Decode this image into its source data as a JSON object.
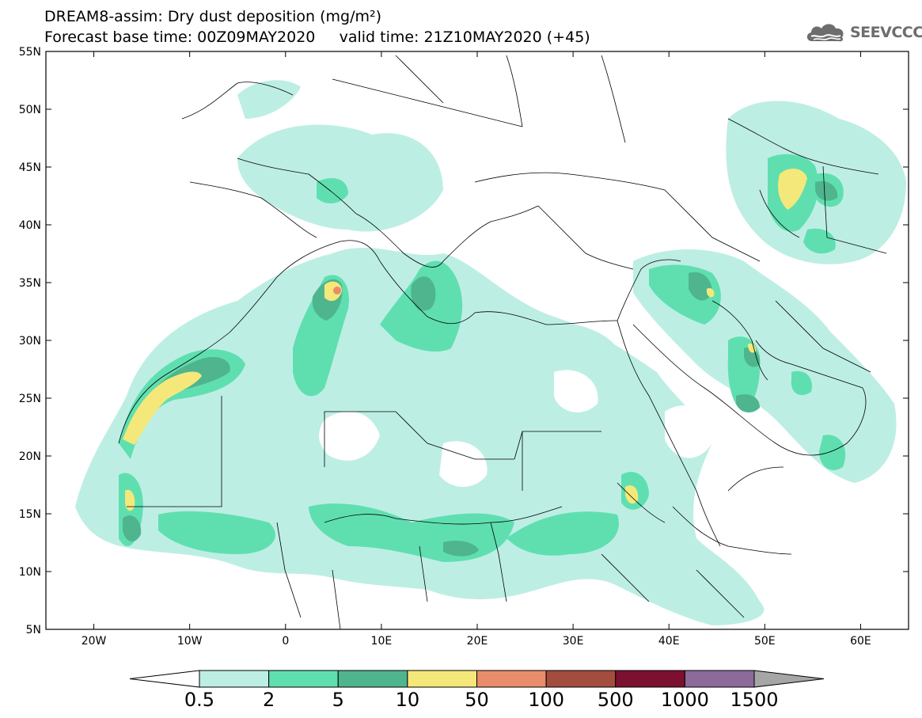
{
  "header": {
    "title_line1": "DREAM8-assim: Dry dust deposition (mg/m²)",
    "title_line2": "Forecast base time: 00Z09MAY2020     valid time: 21Z10MAY2020 (+45)",
    "logo_text": "SEEVCCC",
    "logo_icon": "cloud-icon"
  },
  "map": {
    "lon_ticks": [
      {
        "lon": -20,
        "label": "20W"
      },
      {
        "lon": -10,
        "label": "10W"
      },
      {
        "lon": 0,
        "label": "0"
      },
      {
        "lon": 10,
        "label": "10E"
      },
      {
        "lon": 20,
        "label": "20E"
      },
      {
        "lon": 30,
        "label": "30E"
      },
      {
        "lon": 40,
        "label": "40E"
      },
      {
        "lon": 50,
        "label": "50E"
      },
      {
        "lon": 60,
        "label": "60E"
      }
    ],
    "lat_ticks": [
      {
        "lat": 55,
        "label": "55N"
      },
      {
        "lat": 50,
        "label": "50N"
      },
      {
        "lat": 45,
        "label": "45N"
      },
      {
        "lat": 40,
        "label": "40N"
      },
      {
        "lat": 35,
        "label": "35N"
      },
      {
        "lat": 30,
        "label": "30N"
      },
      {
        "lat": 25,
        "label": "25N"
      },
      {
        "lat": 20,
        "label": "20N"
      },
      {
        "lat": 15,
        "label": "15N"
      },
      {
        "lat": 10,
        "label": "10N"
      },
      {
        "lat": 5,
        "label": "5N"
      }
    ],
    "extent": {
      "lon_min": -25,
      "lon_max": 65,
      "lat_min": 5,
      "lat_max": 55
    }
  },
  "colorbar": {
    "labels": [
      "0.5",
      "2",
      "5",
      "10",
      "50",
      "100",
      "500",
      "1000",
      "1500"
    ],
    "colors": [
      "#bdeee4",
      "#5fdfb0",
      "#4fb58f",
      "#f5e87a",
      "#e88c6a",
      "#a24d3e",
      "#7b1030",
      "#8c6a9a"
    ],
    "under_color": "#ffffff",
    "over_color": "#a6a6a6"
  }
}
